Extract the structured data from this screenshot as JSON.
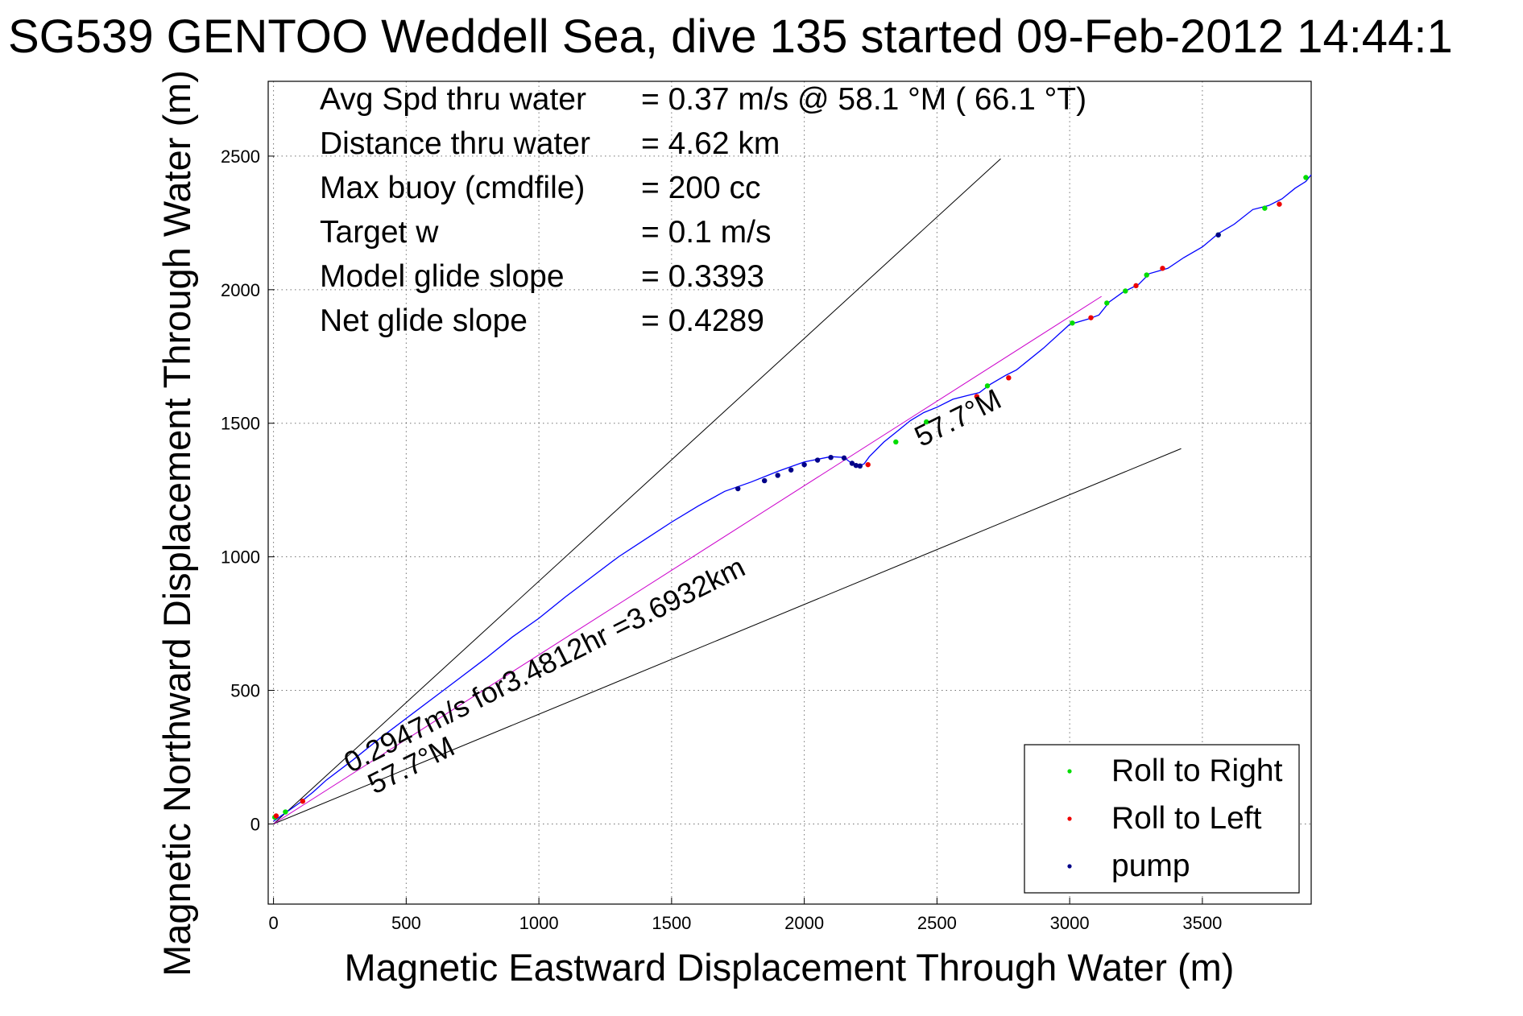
{
  "chart_data": {
    "type": "scatter",
    "title": "SG539 GENTOO Weddell Sea, dive 135 started 09-Feb-2012 14:44:1",
    "xlabel": "Magnetic Eastward Displacement Through Water (m)",
    "ylabel": "Magnetic Northward Displacement Through Water (m)",
    "xlim": [
      -20,
      3910
    ],
    "ylim": [
      -300,
      2780
    ],
    "x_ticks": [
      0,
      500,
      1000,
      1500,
      2000,
      2500,
      3000,
      3500
    ],
    "y_ticks": [
      0,
      500,
      1000,
      1500,
      2000,
      2500
    ],
    "grid": true,
    "legend_position": "bottom-right",
    "info_lines": [
      {
        "label": "Avg Spd thru water",
        "value": "=  0.37 m/s @  58.1 °M ( 66.1 °T)"
      },
      {
        "label": "Distance thru water",
        "value": "=  4.62 km"
      },
      {
        "label": "Max buoy (cmdfile)",
        "value": "= 200 cc"
      },
      {
        "label": "Target w",
        "value": "= 0.1 m/s"
      },
      {
        "label": "Model glide slope",
        "value": "= 0.3393"
      },
      {
        "label": "Net glide slope",
        "value": "= 0.4289"
      }
    ],
    "annotations": [
      {
        "text": "0.2947m/s for3.4812hr =3.6932km",
        "x": 290,
        "y": 190,
        "angle_deg": 26.7
      },
      {
        "text": "57.7°M",
        "x": 380,
        "y": 110,
        "angle_deg": 26.7
      },
      {
        "text": "57.7°M",
        "x": 2440,
        "y": 1410,
        "angle_deg": 26.7
      }
    ],
    "reference_lines": [
      {
        "name": "upper-envelope",
        "x": [
          0,
          2740
        ],
        "y": [
          0,
          2490
        ],
        "color": "#000000"
      },
      {
        "name": "lower-envelope",
        "x": [
          0,
          3420
        ],
        "y": [
          0,
          1405
        ],
        "color": "#000000"
      },
      {
        "name": "net-course",
        "x": [
          0,
          3120
        ],
        "y": [
          0,
          1975
        ],
        "color": "#cc00cc"
      }
    ],
    "track": {
      "color": "#0000ff",
      "x": [
        0,
        50,
        100,
        150,
        200,
        300,
        400,
        500,
        600,
        700,
        800,
        900,
        1000,
        1100,
        1200,
        1300,
        1400,
        1500,
        1600,
        1700,
        1800,
        1900,
        2000,
        2050,
        2100,
        2150,
        2185,
        2205,
        2225,
        2245,
        2300,
        2350,
        2400,
        2450,
        2500,
        2560,
        2620,
        2660,
        2700,
        2760,
        2800,
        2900,
        3000,
        3070,
        3110,
        3150,
        3200,
        3260,
        3300,
        3370,
        3430,
        3500,
        3560,
        3620,
        3690,
        3750,
        3800,
        3850,
        3890,
        3910
      ],
      "y": [
        10,
        45,
        80,
        120,
        165,
        240,
        320,
        395,
        470,
        545,
        620,
        700,
        770,
        850,
        925,
        1000,
        1065,
        1130,
        1190,
        1245,
        1280,
        1320,
        1355,
        1365,
        1375,
        1372,
        1345,
        1340,
        1348,
        1375,
        1430,
        1470,
        1510,
        1540,
        1560,
        1590,
        1605,
        1615,
        1645,
        1680,
        1700,
        1780,
        1870,
        1890,
        1905,
        1955,
        1990,
        2020,
        2060,
        2080,
        2120,
        2160,
        2210,
        2245,
        2300,
        2315,
        2340,
        2380,
        2405,
        2430
      ]
    },
    "series": [
      {
        "name": "Roll to Right",
        "color": "#00dd00",
        "x": [
          5,
          45,
          2345,
          2460,
          2690,
          3010,
          3140,
          3210,
          3290,
          3560,
          3735,
          3890
        ],
        "y": [
          25,
          45,
          1430,
          1505,
          1640,
          1875,
          1950,
          1995,
          2055,
          2205,
          2305,
          2420
        ]
      },
      {
        "name": "Roll to Left",
        "color": "#ee0000",
        "x": [
          10,
          110,
          2240,
          2650,
          2770,
          3080,
          3250,
          3350,
          3790
        ],
        "y": [
          30,
          85,
          1345,
          1600,
          1670,
          1895,
          2015,
          2080,
          2320
        ]
      },
      {
        "name": "pump",
        "color": "#000088",
        "x": [
          1750,
          1850,
          1900,
          1950,
          2000,
          2050,
          2100,
          2150,
          2180,
          2195,
          2210,
          3560
        ],
        "y": [
          1255,
          1285,
          1305,
          1325,
          1345,
          1362,
          1372,
          1370,
          1350,
          1342,
          1340,
          2205
        ]
      }
    ]
  }
}
